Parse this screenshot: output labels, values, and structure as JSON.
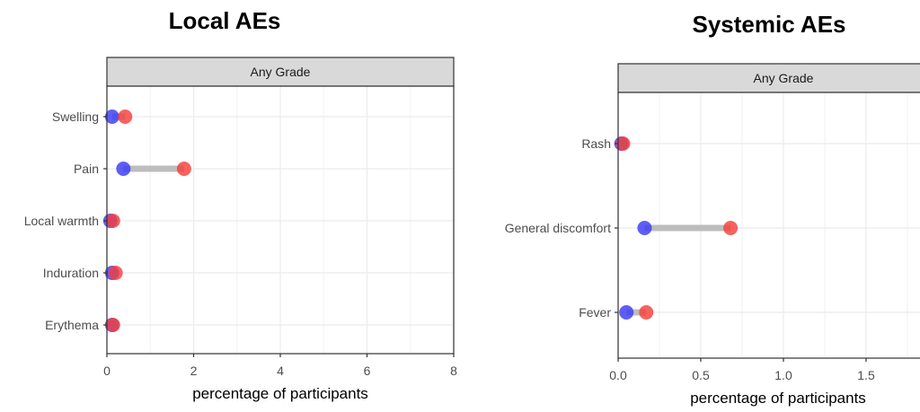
{
  "chart_data": [
    {
      "type": "dumbbell",
      "title": "Local AEs",
      "strip": "Any Grade",
      "xlabel": "percentage of participants",
      "xlim": [
        0,
        8
      ],
      "xticks": [
        "0",
        "2",
        "4",
        "6",
        "8"
      ],
      "xtick_values": [
        0,
        2,
        4,
        6,
        8
      ],
      "categories": [
        "Swelling",
        "Pain",
        "Local warmth",
        "Induration",
        "Erythema"
      ],
      "series": [
        {
          "color": "#3b3bf5",
          "values": [
            0.12,
            0.38,
            0.08,
            0.12,
            0.12
          ]
        },
        {
          "color": "#f5403c",
          "values": [
            0.42,
            1.78,
            0.14,
            0.2,
            0.14
          ]
        }
      ],
      "segment_color": "#bdbdbd",
      "grid": true
    },
    {
      "type": "dumbbell",
      "title": "Systemic AEs",
      "strip": "Any Grade",
      "xlabel": "percentage of participants",
      "xlim": [
        0,
        2.0
      ],
      "xticks": [
        "0.0",
        "0.5",
        "1.0",
        "1.5"
      ],
      "xtick_values": [
        0,
        0.5,
        1.0,
        1.5
      ],
      "categories": [
        "Rash",
        "General discomfort",
        "Fever"
      ],
      "series": [
        {
          "color": "#3b3bf5",
          "values": [
            0.02,
            0.16,
            0.05
          ]
        },
        {
          "color": "#f5403c",
          "values": [
            0.03,
            0.68,
            0.17
          ]
        }
      ],
      "segment_color": "#bdbdbd",
      "grid": true
    }
  ]
}
